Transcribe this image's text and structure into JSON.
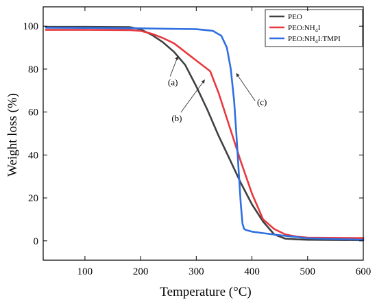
{
  "chart_data": {
    "type": "line",
    "xlabel": "Temperature (°C)",
    "ylabel": "Weight loss (%)",
    "xlim": [
      25,
      600
    ],
    "ylim": [
      -9,
      109
    ],
    "xticks": [
      100,
      200,
      300,
      400,
      500,
      600
    ],
    "yticks": [
      0,
      20,
      40,
      60,
      80,
      100
    ],
    "grid": false,
    "legend_position": "top-right",
    "series": [
      {
        "name": "PEO",
        "color": "#404040",
        "x": [
          30,
          100,
          180,
          200,
          220,
          240,
          260,
          280,
          300,
          320,
          340,
          360,
          380,
          400,
          420,
          440,
          460,
          480,
          500,
          600
        ],
        "y": [
          99.7,
          99.7,
          99.6,
          98.5,
          96,
          92.5,
          88,
          82,
          72,
          61,
          49,
          38,
          27,
          17,
          9,
          3,
          1,
          0.7,
          0.5,
          0.3
        ]
      },
      {
        "name": "PEO:NH4I",
        "name_parts": {
          "pre": "PEO:NH",
          "sub": "4",
          "post": "I"
        },
        "color": "#e8383d",
        "x": [
          30,
          100,
          180,
          200,
          220,
          240,
          260,
          280,
          300,
          320,
          325,
          340,
          360,
          380,
          400,
          420,
          440,
          460,
          480,
          500,
          600
        ],
        "y": [
          98.3,
          98.3,
          98.2,
          97.8,
          96.5,
          94.5,
          92,
          88,
          84,
          80,
          79,
          69,
          53,
          37,
          22,
          10,
          5.5,
          3,
          2,
          1.5,
          1.3
        ]
      },
      {
        "name": "PEO:NH4I:TMPI",
        "name_parts": {
          "pre": "PEO:NH",
          "sub": "4",
          "post": "I:TMPI"
        },
        "color": "#2f6fe0",
        "x": [
          30,
          100,
          200,
          300,
          330,
          345,
          355,
          362,
          368,
          372,
          376,
          380,
          383,
          386,
          390,
          400,
          420,
          450,
          500,
          600
        ],
        "y": [
          99.3,
          99.2,
          99,
          98.6,
          97.8,
          95.5,
          90,
          80,
          65,
          50,
          33,
          17,
          8,
          5.5,
          5,
          4.3,
          3.6,
          2.6,
          1.2,
          0.5
        ]
      }
    ],
    "annotations": [
      {
        "text": "(a)",
        "x": 258,
        "y": 72.5,
        "arrow_to": [
          267,
          86
        ]
      },
      {
        "text": "(b)",
        "x": 265,
        "y": 55.7,
        "arrow_to": [
          315,
          75
        ]
      },
      {
        "text": "(c)",
        "x": 418,
        "y": 63.3,
        "arrow_to": [
          372,
          78
        ]
      }
    ]
  }
}
